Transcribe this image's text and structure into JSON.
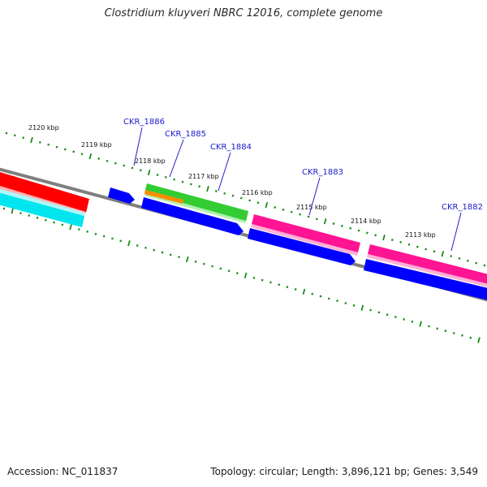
{
  "title": "Clostridium kluyveri NBRC 12016, complete genome",
  "footer": {
    "accession": "Accession: NC_011837",
    "topology": "Topology: circular; Length: 3,896,121 bp; Genes: 3,549"
  },
  "colors": {
    "backbone": "#7f7f7f",
    "tick": "#1a8c1a",
    "label_line": "#2020cc",
    "red": "#ff0000",
    "cyan": "#00e5ee",
    "blue": "#0000ff",
    "green": "#33cc33",
    "orange": "#ff8c00",
    "magenta": "#ff1493"
  },
  "kbp_labels": [
    "2120 kbp",
    "2119 kbp",
    "2118 kbp",
    "2117 kbp",
    "2116 kbp",
    "2115 kbp",
    "2114 kbp",
    "2113 kbp"
  ],
  "gene_labels": [
    "CKR_1886",
    "CKR_1885",
    "CKR_1884",
    "CKR_1883",
    "CKR_1882"
  ]
}
